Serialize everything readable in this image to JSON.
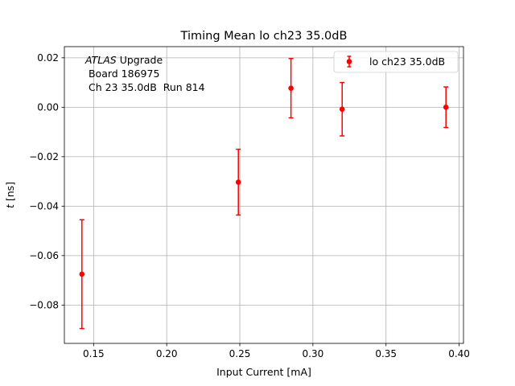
{
  "chart_data": {
    "type": "scatter",
    "title": "Timing Mean lo ch23 35.0dB",
    "xlabel": "Input Current [mA]",
    "ylabel_italic": "t",
    "ylabel_unit": " [ns]",
    "xlim": [
      0.13,
      0.403
    ],
    "ylim": [
      -0.0955,
      0.0245
    ],
    "xticks": [
      0.15,
      0.2,
      0.25,
      0.3,
      0.35,
      0.4
    ],
    "xtick_labels": [
      "0.15",
      "0.20",
      "0.25",
      "0.30",
      "0.35",
      "0.40"
    ],
    "yticks": [
      -0.08,
      -0.06,
      -0.04,
      -0.02,
      0.0,
      0.02
    ],
    "ytick_labels": [
      "−0.08",
      "−0.06",
      "−0.04",
      "−0.02",
      "0.00",
      "0.02"
    ],
    "grid": true,
    "legend_position": "top-right",
    "series": [
      {
        "name": "lo ch23 35.0dB",
        "color": "#ff0000",
        "x": [
          0.142,
          0.249,
          0.285,
          0.32,
          0.391
        ],
        "y": [
          -0.0675,
          -0.0303,
          0.0077,
          -0.0008,
          0.0
        ],
        "yerr": [
          0.022,
          0.0133,
          0.012,
          0.0108,
          0.0082
        ]
      }
    ],
    "annotation": {
      "italic": "ATLAS",
      "line1_rest": " Upgrade",
      "line2": " Board 186975",
      "line3": " Ch 23 35.0dB  Run 814"
    }
  }
}
